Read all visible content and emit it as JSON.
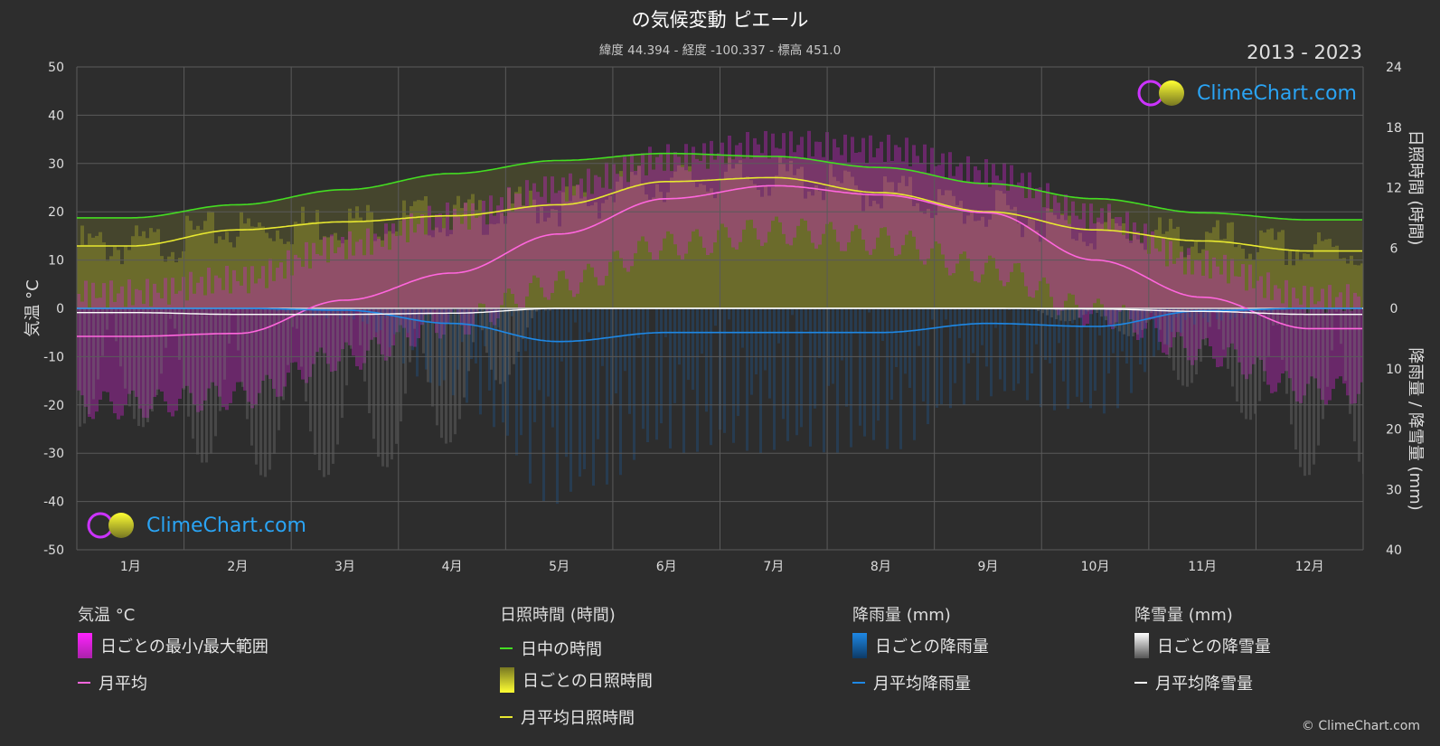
{
  "title": "の気候変動 ピエール",
  "subtitle": "緯度 44.394 - 経度 -100.337 - 標高 451.0",
  "period": "2013 - 2023",
  "logo_text": "ClimeChart.com",
  "copyright": "© ClimeChart.com",
  "colors": {
    "background": "#2d2d2d",
    "daylight": "#44dd22",
    "sunshine_avg": "#e8e830",
    "sunshine_fill": "#8a8a2a",
    "temp_avg": "#ff66dd",
    "temp_range": "#cc22cc",
    "rain": "#1e88e5",
    "snow": "#ffffff"
  },
  "chart_data": {
    "type": "line",
    "months": [
      "1月",
      "2月",
      "3月",
      "4月",
      "5月",
      "6月",
      "7月",
      "8月",
      "9月",
      "10月",
      "11月",
      "12月"
    ],
    "left_axis": {
      "label": "気温 °C",
      "ticks": [
        50,
        40,
        30,
        20,
        10,
        0,
        -10,
        -20,
        -30,
        -40,
        -50
      ],
      "range": [
        -50,
        50
      ]
    },
    "right_axis_top": {
      "label": "日照時間 (時間)",
      "ticks": [
        24,
        18,
        12,
        6,
        0
      ],
      "range": [
        0,
        24
      ]
    },
    "right_axis_bottom": {
      "label": "降雨量 / 降雪量 (mm)",
      "ticks": [
        0,
        10,
        20,
        30,
        40
      ],
      "range": [
        0,
        40
      ]
    },
    "series": [
      {
        "name": "日中の時間",
        "unit": "hours",
        "values": [
          9.0,
          10.3,
          11.8,
          13.4,
          14.7,
          15.4,
          15.1,
          14.0,
          12.4,
          10.9,
          9.5,
          8.8
        ]
      },
      {
        "name": "月平均日照時間",
        "unit": "hours",
        "values": [
          6.2,
          7.8,
          8.6,
          9.2,
          10.3,
          12.6,
          13.0,
          11.5,
          9.6,
          7.8,
          6.7,
          5.7
        ]
      },
      {
        "name": "月平均",
        "unit": "°C",
        "values": [
          -5.8,
          -5.2,
          1.7,
          7.3,
          15.4,
          22.7,
          25.4,
          23.5,
          19.8,
          10.0,
          2.3,
          -4.2
        ]
      },
      {
        "name": "月平均降雨量",
        "unit": "mm",
        "values": [
          0.0,
          0.0,
          0.3,
          2.5,
          5.5,
          4.0,
          4.0,
          4.0,
          2.5,
          3.0,
          0.4,
          0.0
        ]
      },
      {
        "name": "月平均降雪量",
        "unit": "mm",
        "values": [
          0.7,
          1.0,
          1.0,
          0.8,
          0.0,
          0.0,
          0.0,
          0.0,
          0.0,
          0.1,
          0.5,
          1.0
        ]
      }
    ],
    "daily_temp_range": {
      "min": [
        -20,
        -18,
        -10,
        -3,
        5,
        13,
        16,
        14,
        8,
        -1,
        -9,
        -17
      ],
      "max": [
        3,
        6,
        13,
        19,
        25,
        31,
        34,
        33,
        28,
        19,
        9,
        2
      ]
    },
    "grid": true
  },
  "legend": {
    "temperature": {
      "heading": "気温 °C",
      "items": [
        "日ごとの最小/最大範囲",
        "月平均"
      ]
    },
    "sunshine": {
      "heading": "日照時間 (時間)",
      "items": [
        "日中の時間",
        "日ごとの日照時間",
        "月平均日照時間"
      ]
    },
    "rain": {
      "heading": "降雨量 (mm)",
      "items": [
        "日ごとの降雨量",
        "月平均降雨量"
      ]
    },
    "snow": {
      "heading": "降雪量 (mm)",
      "items": [
        "日ごとの降雪量",
        "月平均降雪量"
      ]
    }
  }
}
